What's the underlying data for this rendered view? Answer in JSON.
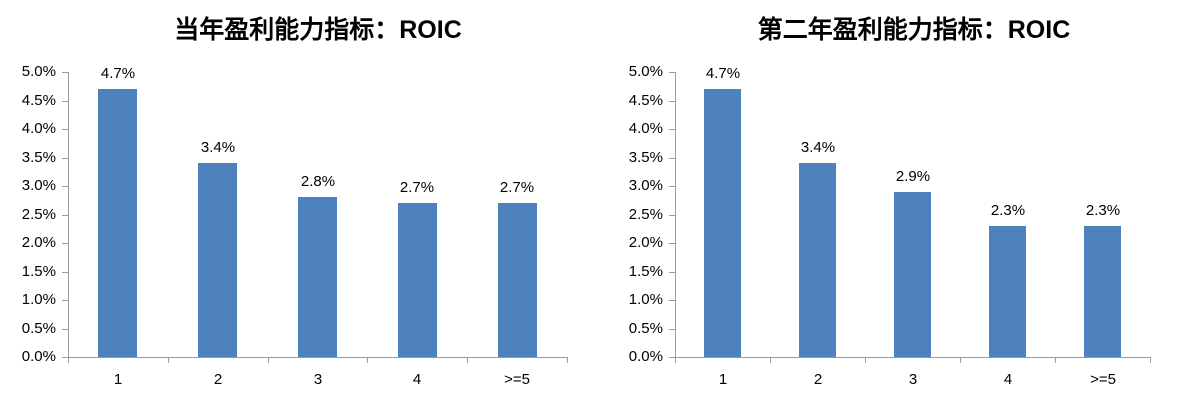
{
  "page": {
    "background_color": "#ffffff"
  },
  "chart_data": [
    {
      "type": "bar",
      "title": "当年盈利能力指标：ROIC",
      "categories": [
        "1",
        "2",
        "3",
        "4",
        ">=5"
      ],
      "values": [
        4.7,
        3.4,
        2.8,
        2.7,
        2.7
      ],
      "value_labels": [
        "4.7%",
        "3.4%",
        "2.8%",
        "2.7%",
        "2.7%"
      ],
      "xlabel": "",
      "ylabel": "",
      "ylim": [
        0,
        5
      ],
      "ytick_step": 0.5,
      "ytick_labels": [
        "0.0%",
        "0.5%",
        "1.0%",
        "1.5%",
        "2.0%",
        "2.5%",
        "3.0%",
        "3.5%",
        "4.0%",
        "4.5%",
        "5.0%"
      ],
      "grid": false,
      "legend": null,
      "bar_color": "#4F81BD",
      "axis_color": "#9C9C9C",
      "text_color": "#000000"
    },
    {
      "type": "bar",
      "title": "第二年盈利能力指标：ROIC",
      "categories": [
        "1",
        "2",
        "3",
        "4",
        ">=5"
      ],
      "values": [
        4.7,
        3.4,
        2.9,
        2.3,
        2.3
      ],
      "value_labels": [
        "4.7%",
        "3.4%",
        "2.9%",
        "2.3%",
        "2.3%"
      ],
      "xlabel": "",
      "ylabel": "",
      "ylim": [
        0,
        5
      ],
      "ytick_step": 0.5,
      "ytick_labels": [
        "0.0%",
        "0.5%",
        "1.0%",
        "1.5%",
        "2.0%",
        "2.5%",
        "3.0%",
        "3.5%",
        "4.0%",
        "4.5%",
        "5.0%"
      ],
      "grid": false,
      "legend": null,
      "bar_color": "#4F81BD",
      "axis_color": "#9C9C9C",
      "text_color": "#000000"
    }
  ]
}
